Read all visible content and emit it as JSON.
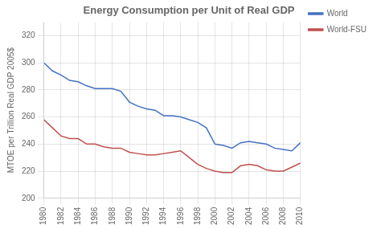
{
  "chart_data": {
    "type": "line",
    "title": "Energy Consumption per Unit of Real GDP",
    "ylabel": "MTOE per Trillion Real GDP 2005$",
    "x": [
      1980,
      1981,
      1982,
      1983,
      1984,
      1985,
      1986,
      1987,
      1988,
      1989,
      1990,
      1991,
      1992,
      1993,
      1994,
      1995,
      1996,
      1997,
      1998,
      1999,
      2000,
      2001,
      2002,
      2003,
      2004,
      2005,
      2006,
      2007,
      2008,
      2009,
      2010
    ],
    "series": [
      {
        "name": "World",
        "color": "#4472C4",
        "values": [
          300,
          294,
          291,
          287,
          286,
          283,
          281,
          281,
          281,
          279,
          271,
          268,
          266,
          265,
          261,
          261,
          260,
          258,
          256,
          252,
          240,
          239,
          237,
          241,
          242,
          241,
          240,
          237,
          236,
          235,
          241
        ]
      },
      {
        "name": "World-FSU",
        "color": "#C0504D",
        "values": [
          258,
          252,
          246,
          244,
          244,
          240,
          240,
          238,
          237,
          237,
          234,
          233,
          232,
          232,
          233,
          234,
          235,
          230,
          225,
          222,
          220,
          219,
          219,
          224,
          225,
          224,
          221,
          220,
          220,
          223,
          226
        ]
      }
    ],
    "xlim": [
      1980,
      2010
    ],
    "xticks": [
      1980,
      1982,
      1984,
      1986,
      1988,
      1990,
      1992,
      1994,
      1996,
      1998,
      2000,
      2002,
      2004,
      2006,
      2008,
      2010
    ],
    "ylim": [
      200,
      330
    ],
    "yticks": [
      200,
      220,
      240,
      260,
      280,
      300,
      320
    ],
    "grid": true,
    "legend": "upper right"
  }
}
